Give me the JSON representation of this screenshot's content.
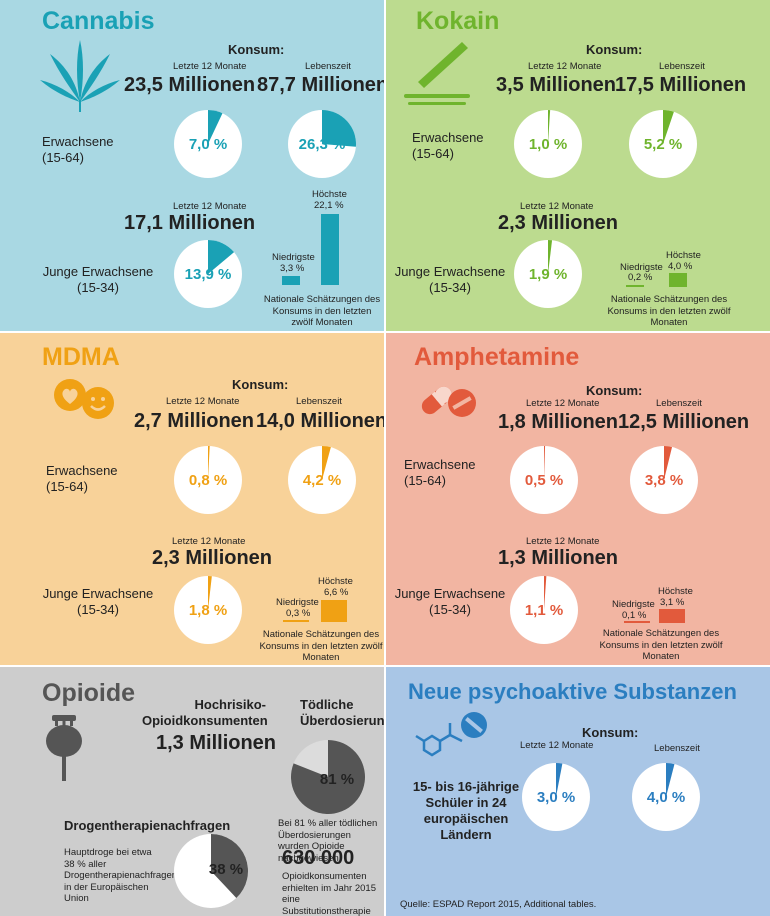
{
  "colors": {
    "cannabis_bg": "#a9d8e3",
    "cannabis": "#1aa1b5",
    "kokain_bg": "#bcdb8f",
    "kokain": "#6fb42d",
    "mdma_bg": "#f8d299",
    "mdma": "#f0a114",
    "amph_bg": "#f2b5a2",
    "amph": "#e25a3c",
    "opioide_bg": "#cdcdcd",
    "opioide": "#555555",
    "opioide_light": "#dcdcdc",
    "nps_bg": "#a9c6e6",
    "nps": "#2b7ec0"
  },
  "labels": {
    "konsum": "Konsum:",
    "letzte": "Letzte 12 Monate",
    "lebenszeit": "Lebenszeit",
    "erwachsene": "Erwachsene (15-64)",
    "junge": "Junge Erwachsene (15-34)",
    "niedrigste": "Niedrigste",
    "hoechste": "Höchste",
    "nat_note": "Nationale Schätzungen des Konsums in den letzten zwölf Monaten"
  },
  "cannabis": {
    "title": "Cannabis",
    "icon": "cannabis-leaf-icon",
    "adult_12m": "23,5 Millionen",
    "adult_life": "87,7 Millionen",
    "adult_12m_pct": "7,0 %",
    "adult_life_pct": "26,3 %",
    "adult_12m_val": 7.0,
    "adult_life_val": 26.3,
    "young_12m": "17,1 Millionen",
    "young_12m_pct": "13,9 %",
    "young_12m_val": 13.9,
    "low_label": "3,3 %",
    "high_label": "22,1 %",
    "low_val": 3.3,
    "high_val": 22.1
  },
  "kokain": {
    "title": "Kokain",
    "icon": "cocaine-lines-icon",
    "adult_12m": "3,5 Millionen",
    "adult_life": "17,5 Millionen",
    "adult_12m_pct": "1,0 %",
    "adult_life_pct": "5,2 %",
    "adult_12m_val": 1.0,
    "adult_life_val": 5.2,
    "young_12m": "2,3 Millionen",
    "young_12m_pct": "1,9 %",
    "young_12m_val": 1.9,
    "low_label": "0,2 %",
    "high_label": "4,0 %",
    "low_val": 0.2,
    "high_val": 4.0
  },
  "mdma": {
    "title": "MDMA",
    "icon": "smiley-heart-pills-icon",
    "adult_12m": "2,7 Millionen",
    "adult_life": "14,0 Millionen",
    "adult_12m_pct": "0,8 %",
    "adult_life_pct": "4,2 %",
    "adult_12m_val": 0.8,
    "adult_life_val": 4.2,
    "young_12m": "2,3 Millionen",
    "young_12m_pct": "1,8 %",
    "young_12m_val": 1.8,
    "low_label": "0,3 %",
    "high_label": "6,6 %",
    "low_val": 0.3,
    "high_val": 6.6
  },
  "amph": {
    "title": "Amphetamine",
    "icon": "pills-capsule-icon",
    "adult_12m": "1,8 Millionen",
    "adult_life": "12,5 Millionen",
    "adult_12m_pct": "0,5 %",
    "adult_life_pct": "3,8 %",
    "adult_12m_val": 0.5,
    "adult_life_val": 3.8,
    "young_12m": "1,3 Millionen",
    "young_12m_pct": "1,1 %",
    "young_12m_val": 1.1,
    "low_label": "0,1 %",
    "high_label": "3,1 %",
    "low_val": 0.1,
    "high_val": 3.1
  },
  "opioide": {
    "title": "Opioide",
    "icon": "poppy-icon",
    "hr_label": "Hochrisiko-Opioidkonsumenten",
    "hr_value": "1,3 Millionen",
    "od_label": "Tödliche Überdosierungen",
    "od_pct": "81 %",
    "od_val": 81,
    "od_note": "Bei 81 % aller tödlichen Überdosierungen wurden Opioide nachgewiesen",
    "therapy_label": "Drogentherapienachfragen",
    "therapy_note": "Hauptdroge bei etwa 38 % aller Drogentherapienachfragen in der Europäischen Union",
    "therapy_pct": "38 %",
    "therapy_val": 38,
    "subst_value": "630 000",
    "subst_note": "Opioidkonsumenten erhielten im Jahr 2015 eine Substitutionstherapie"
  },
  "nps": {
    "title": "Neue psychoaktive Substanzen",
    "icon": "molecule-pill-icon",
    "group": "15- bis 16-jährige Schüler in 24 europäischen Ländern",
    "pct_12m": "3,0 %",
    "pct_life": "4,0 %",
    "val_12m": 3.0,
    "val_life": 4.0,
    "source": "Quelle: ESPAD Report 2015, Additional tables."
  }
}
